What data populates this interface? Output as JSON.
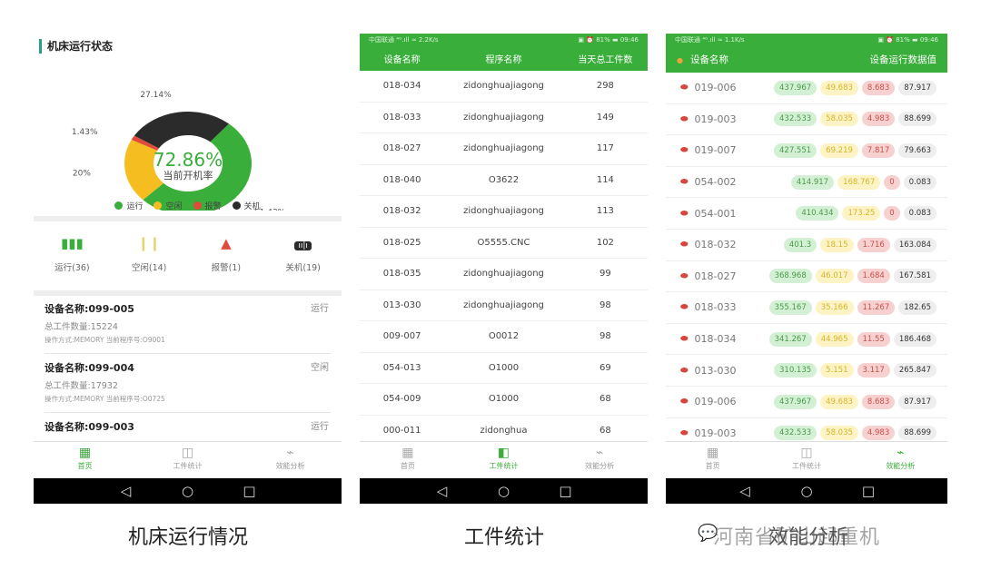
{
  "screen1": {
    "title": "机床运行状态",
    "donut": {
      "center_value": "72.86%",
      "center_label": "当前开机率",
      "slices": [
        {
          "name": "运行",
          "value": 51.43,
          "label": "51.43%",
          "color": "#3aae3a"
        },
        {
          "name": "空闲",
          "value": 20,
          "label": "20%",
          "color": "#f5bd1f"
        },
        {
          "name": "报警",
          "value": 1.43,
          "label": "1.43%",
          "color": "#e04b3c"
        },
        {
          "name": "关机",
          "value": 27.14,
          "label": "27.14%",
          "color": "#2b2b2b"
        }
      ]
    },
    "legend": [
      "运行",
      "空闲",
      "报警",
      "关机"
    ],
    "stats": [
      {
        "label": "运行(36)",
        "icon": "bar-chart-icon",
        "color": "#3aae3a"
      },
      {
        "label": "空闲(14)",
        "icon": "pause-icon",
        "color": "#e8d36a"
      },
      {
        "label": "报警(1)",
        "icon": "warning-icon",
        "color": "#e04b3c"
      },
      {
        "label": "关机(19)",
        "icon": "power-off-icon",
        "color": "#2b2b2b"
      }
    ],
    "devices": [
      {
        "name": "设备名称:099-005",
        "status": "运行",
        "count": "总工件数量:15224",
        "op": "操作方式:MEMORY 当前程序号:O9001"
      },
      {
        "name": "设备名称:099-004",
        "status": "空闲",
        "count": "总工件数量:17932",
        "op": "操作方式:MEMORY 当前程序号:O0725"
      },
      {
        "name": "设备名称:099-003",
        "status": "运行",
        "count": "",
        "op": ""
      }
    ]
  },
  "statusbar": {
    "left2": "中国联通 ⁴ᴳ.ıll ≈ 2.2K/s",
    "left3": "中国联通 ⁴ᴳ.ıll ≈ 1.1K/s",
    "right": "▣ ⏰ 81% ▬ 09:46"
  },
  "screen2": {
    "headers": [
      "设备名称",
      "程序名称",
      "当天总工件数"
    ],
    "rows": [
      [
        "018-034",
        "zidonghuajiagong",
        "298"
      ],
      [
        "018-033",
        "zidonghuajiagong",
        "149"
      ],
      [
        "018-027",
        "zidonghuajiagong",
        "117"
      ],
      [
        "018-040",
        "O3622",
        "114"
      ],
      [
        "018-032",
        "zidonghuajiagong",
        "113"
      ],
      [
        "018-025",
        "O5555.CNC",
        "102"
      ],
      [
        "018-035",
        "zidonghuajiagong",
        "99"
      ],
      [
        "013-030",
        "zidonghuajiagong",
        "98"
      ],
      [
        "009-007",
        "O0012",
        "98"
      ],
      [
        "054-013",
        "O1000",
        "69"
      ],
      [
        "054-009",
        "O1000",
        "68"
      ],
      [
        "000-011",
        "zidonghua",
        "68"
      ]
    ]
  },
  "screen3": {
    "headers": [
      "设备名称",
      "设备运行数据值"
    ],
    "rows": [
      [
        "019-006",
        "437.967",
        "49.683",
        "8.683",
        "87.917"
      ],
      [
        "019-003",
        "432.533",
        "58.035",
        "4.983",
        "88.699"
      ],
      [
        "019-007",
        "427.551",
        "69.219",
        "7.817",
        "79.663"
      ],
      [
        "054-002",
        "414.917",
        "168.767",
        "0",
        "0.083"
      ],
      [
        "054-001",
        "410.434",
        "173.25",
        "0",
        "0.083"
      ],
      [
        "018-032",
        "401.3",
        "18.15",
        "1.716",
        "163.084"
      ],
      [
        "018-027",
        "368.968",
        "46.017",
        "1.684",
        "167.581"
      ],
      [
        "018-033",
        "355.167",
        "35.166",
        "11.267",
        "182.65"
      ],
      [
        "018-034",
        "341.267",
        "44.965",
        "11.55",
        "186.468"
      ],
      [
        "013-030",
        "310.135",
        "5.151",
        "3.117",
        "265.847"
      ],
      [
        "019-006",
        "437.967",
        "49.683",
        "8.683",
        "87.917"
      ],
      [
        "019-003",
        "432.533",
        "58.035",
        "4.983",
        "88.699"
      ]
    ]
  },
  "tabs": [
    "首页",
    "工件统计",
    "效能分析"
  ],
  "captions": [
    "机床运行情况",
    "工件统计",
    "效能分析"
  ],
  "watermark": "河南省矿山起重机"
}
